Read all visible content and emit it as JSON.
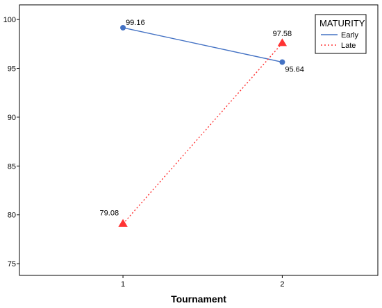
{
  "chart_data": {
    "type": "line",
    "title": "",
    "xlabel": "Tournament",
    "ylabel": "",
    "x": [
      1,
      2
    ],
    "x_tick_labels": [
      "1",
      "2"
    ],
    "xlim": [
      0.35,
      2.6
    ],
    "ylim": [
      73.8,
      101.5
    ],
    "y_ticks": [
      75,
      80,
      85,
      90,
      95,
      100
    ],
    "y_tick_labels": [
      "75",
      "80",
      "85",
      "90",
      "95",
      "100"
    ],
    "grid": false,
    "legend": {
      "title": "MATURITY",
      "placement": "top-right"
    },
    "series": [
      {
        "name": "Early",
        "values": [
          99.16,
          95.64
        ],
        "labels": [
          "99.16",
          "95.64"
        ],
        "color": "#4472c4",
        "line_style": "solid",
        "marker": "circle"
      },
      {
        "name": "Late",
        "values": [
          79.08,
          97.58
        ],
        "labels": [
          "79.08",
          "97.58"
        ],
        "color": "#ff3333",
        "line_style": "dotted",
        "marker": "triangle"
      }
    ]
  }
}
